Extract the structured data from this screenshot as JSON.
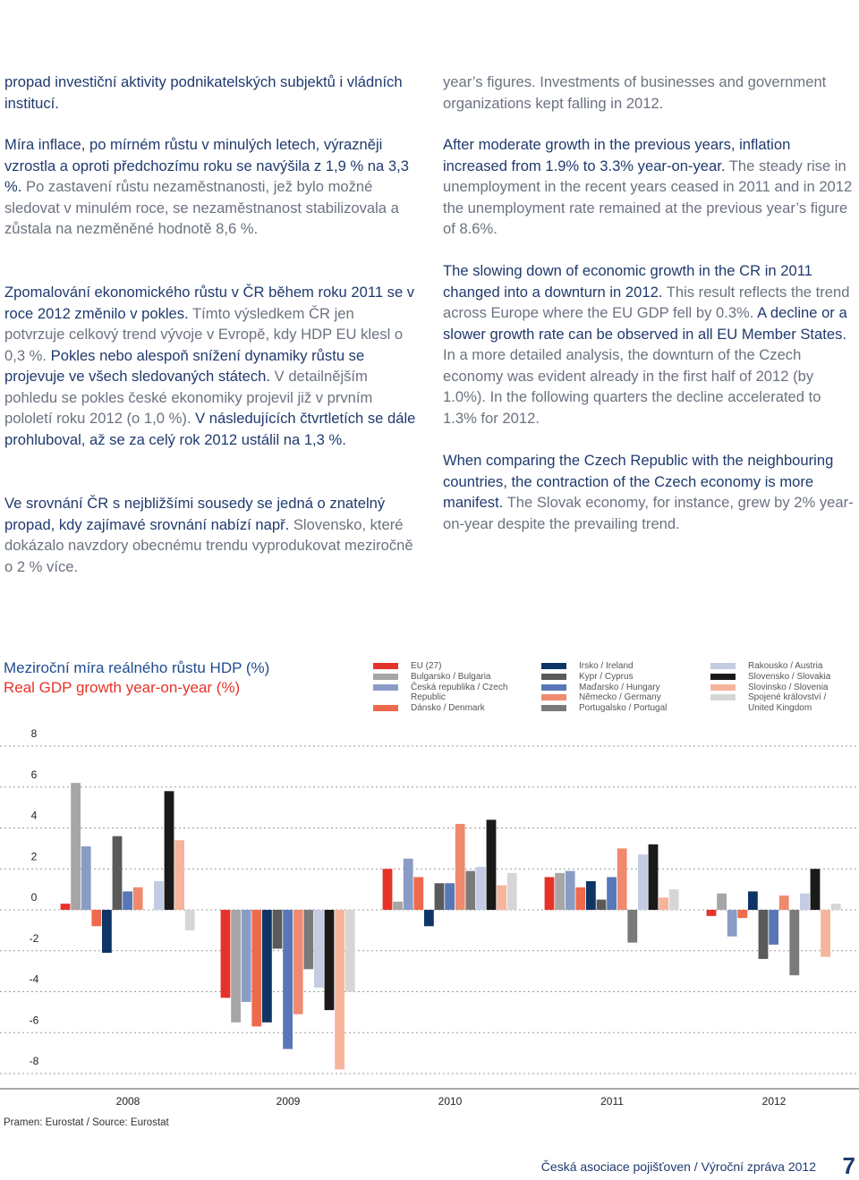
{
  "text": {
    "left": [
      {
        "parts": [
          {
            "text": "propad investiční aktivity podnikatelských subjektů i vládních institucí.",
            "color": "#1f3a6e"
          }
        ]
      },
      {
        "parts": [
          {
            "text": "Míra inflace, po mírném růstu v minulých letech, výrazněji vzrostla a oproti předchozímu roku se navýšila z 1,9 % na 3,3 %.",
            "color": "#1f3a6e"
          },
          {
            "text": "Po zastavení růstu nezaměstnanosti, jež bylo možné sledovat v minulém roce, se nezaměstnanost stabilizovala a zůstala na nezměněné hodnotě 8,6 %.",
            "color": "#6b7280"
          }
        ]
      },
      {
        "parts": [
          {
            "text": "Zpomalování ekonomického růstu v ČR během roku 2011 se v roce 2012 změnilo v pokles.",
            "color": "#1f3a6e"
          },
          {
            "text": "Tímto výsledkem ČR jen potvrzuje celkový trend vývoje v Evropě, kdy HDP EU klesl o 0,3 %.",
            "color": "#6b7280"
          },
          {
            "text": "Pokles nebo alespoň snížení dynamiky růstu se projevuje ve všech sledovaných státech.",
            "color": "#1f3a6e"
          },
          {
            "text": "V detailnějším pohledu se pokles české ekonomiky projevil již v prvním pololetí roku 2012 (o 1,0 %).",
            "color": "#6b7280"
          },
          {
            "text": "V následujících čtvrtletích se dále prohluboval, až se za celý rok 2012 ustálil na 1,3 %.",
            "color": "#1f3a6e"
          }
        ]
      },
      {
        "parts": [
          {
            "text": "Ve srovnání ČR s nejbližšími sousedy se jedná o znatelný propad, kdy zajímavé srovnání nabízí např.",
            "color": "#1f3a6e"
          },
          {
            "text": "Slovensko, které dokázalo navzdory obecnému trendu vyprodukovat meziročně o 2 % více.",
            "color": "#6b7280"
          }
        ]
      }
    ],
    "right": [
      {
        "parts": [
          {
            "text": "year’s figures. Investments of businesses and government organizations kept falling in 2012.",
            "color": "#6b7280"
          }
        ]
      },
      {
        "parts": [
          {
            "text": "After moderate growth in the previous years, inflation increased from 1.9% to 3.3% year-on-year.",
            "color": "#1f3a6e"
          },
          {
            "text": "The steady rise in unemployment in the recent years ceased in 2011 and in 2012 the unemployment rate remained at the previous year’s figure of 8.6%.",
            "color": "#6b7280"
          }
        ]
      },
      {
        "parts": [
          {
            "text": "The slowing down of economic growth in the CR in 2011 changed into a downturn in 2012.",
            "color": "#1f3a6e"
          },
          {
            "text": "This result reflects the trend across Europe where the EU GDP fell by 0.3%.",
            "color": "#6b7280"
          },
          {
            "text": "A decline or a slower growth rate can be observed in all EU Member States.",
            "color": "#1f3a6e"
          },
          {
            "text": "In a more detailed analysis, the downturn of the Czech economy was evident already in the first half of 2012 (by 1.0%). In the following quarters the decline accelerated to 1.3% for 2012.",
            "color": "#6b7280"
          }
        ]
      },
      {
        "parts": [
          {
            "text": "When comparing the Czech Republic with the neighbouring countries, the contraction of the Czech economy is more manifest.",
            "color": "#1f3a6e"
          },
          {
            "text": "The Slovak economy, for instance, grew by 2% year-on-year despite the prevailing trend.",
            "color": "#6b7280"
          }
        ]
      }
    ]
  },
  "chart_data": {
    "type": "bar",
    "title": "Meziroční míra reálného růstu HDP (%)",
    "subtitle": "Real GDP growth year-on-year (%)",
    "categories": [
      "2008",
      "2009",
      "2010",
      "2011",
      "2012"
    ],
    "ylim": [
      -8,
      8
    ],
    "yticks": [
      8,
      6,
      4,
      2,
      0,
      -2,
      -4,
      -6,
      -8
    ],
    "grid": true,
    "series": [
      {
        "name": "EU (27)",
        "color": "#e63329",
        "values": [
          0.3,
          -4.3,
          2.0,
          1.6,
          -0.3
        ]
      },
      {
        "name": "Bulgarsko / Bulgaria",
        "color": "#a6a6a6",
        "values": [
          6.2,
          -5.5,
          0.4,
          1.8,
          0.8
        ]
      },
      {
        "name": "Česká republika / Czech Republic",
        "color": "#8a9cc6",
        "values": [
          3.1,
          -4.5,
          2.5,
          1.9,
          -1.3
        ]
      },
      {
        "name": "Dánsko / Denmark",
        "color": "#ef6a4c",
        "values": [
          -0.8,
          -5.7,
          1.6,
          1.1,
          -0.4
        ]
      },
      {
        "name": "Irsko / Ireland",
        "color": "#0f3566",
        "values": [
          -2.1,
          -5.5,
          -0.8,
          1.4,
          0.9
        ]
      },
      {
        "name": "Kypr / Cyprus",
        "color": "#5a5a5a",
        "values": [
          3.6,
          -1.9,
          1.3,
          0.5,
          -2.4
        ]
      },
      {
        "name": "Maďarsko / Hungary",
        "color": "#5877b8",
        "values": [
          0.9,
          -6.8,
          1.3,
          1.6,
          -1.7
        ]
      },
      {
        "name": "Německo / Germany",
        "color": "#f08a6e",
        "values": [
          1.1,
          -5.1,
          4.2,
          3.0,
          0.7
        ]
      },
      {
        "name": "Portugalsko / Portugal",
        "color": "#7a7a7a",
        "values": [
          0.0,
          -2.9,
          1.9,
          -1.6,
          -3.2
        ]
      },
      {
        "name": "Rakousko / Austria",
        "color": "#c3cce3",
        "values": [
          1.4,
          -3.8,
          2.1,
          2.7,
          0.8
        ]
      },
      {
        "name": "Slovensko / Slovakia",
        "color": "#1a1a1a",
        "values": [
          5.8,
          -4.9,
          4.4,
          3.2,
          2.0
        ]
      },
      {
        "name": "Slovinsko / Slovenia",
        "color": "#f7b49c",
        "values": [
          3.4,
          -7.8,
          1.2,
          0.6,
          -2.3
        ]
      },
      {
        "name": "Spojené království / United Kingdom",
        "color": "#d6d6d6",
        "values": [
          -1.0,
          -4.0,
          1.8,
          1.0,
          0.3
        ]
      }
    ],
    "source": "Pramen: Eurostat / Source: Eurostat"
  },
  "footer": {
    "publication": "Česká asociace pojišťoven / Výroční zpráva 2012",
    "page": "7"
  }
}
